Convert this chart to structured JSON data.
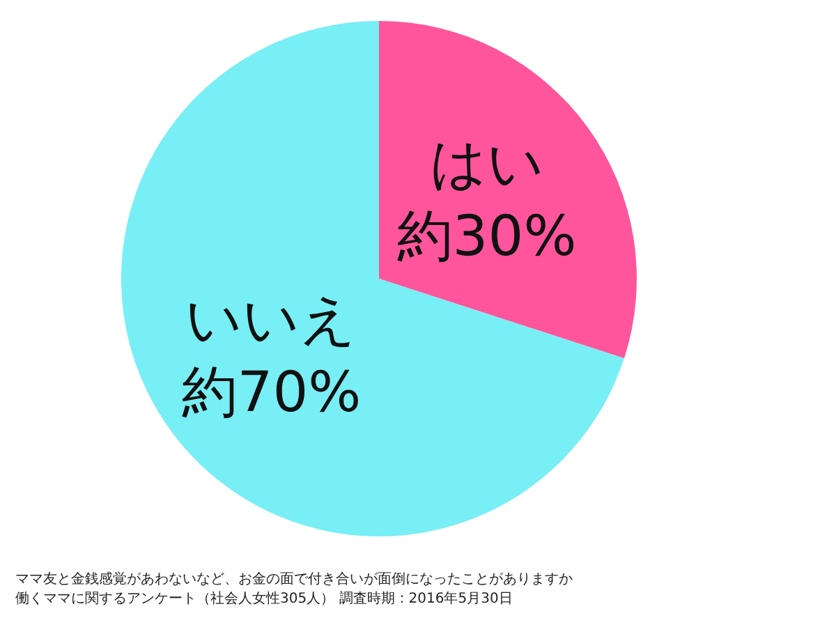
{
  "chart_data": {
    "type": "pie",
    "categories": [
      "はい",
      "いいえ"
    ],
    "values": [
      30,
      70
    ],
    "colors": [
      "#ff559c",
      "#78eef5"
    ],
    "value_labels": [
      "約30%",
      "約70%"
    ],
    "legend": false,
    "annotations": [
      "ママ友と金銭感覚があわないなど、お金の面で付き合いが面倒になったことがありますか",
      "働くママに関するアンケート（社会人女性305人） 調査時期：2016年5月30日"
    ]
  }
}
